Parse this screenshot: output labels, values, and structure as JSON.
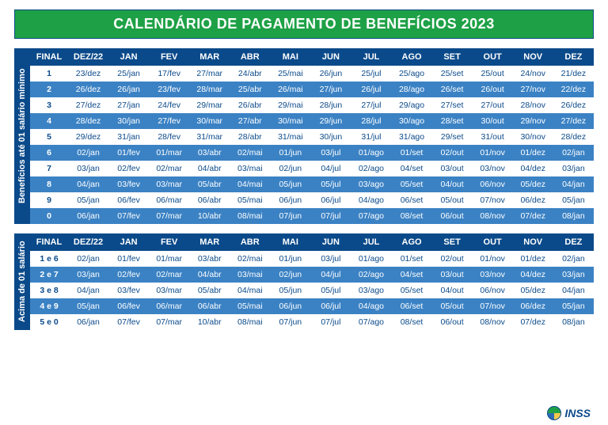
{
  "title": "CALENDÁRIO DE PAGAMENTO DE BENEFÍCIOS 2023",
  "footer_org": "INSS",
  "colors": {
    "banner_bg": "#1ea146",
    "header_bg": "#0b4a8a",
    "row_alt_bg": "#3b82c4",
    "text_dark": "#0b4a8a",
    "text_light": "#ffffff"
  },
  "columns": [
    "FINAL",
    "DEZ/22",
    "JAN",
    "FEV",
    "MAR",
    "ABR",
    "MAI",
    "JUN",
    "JUL",
    "AGO",
    "SET",
    "OUT",
    "NOV",
    "DEZ"
  ],
  "section1": {
    "sidebar": "Benefícios até 01 salário mínimo",
    "rows": [
      [
        "1",
        "23/dez",
        "25/jan",
        "17/fev",
        "27/mar",
        "24/abr",
        "25/mai",
        "26/jun",
        "25/jul",
        "25/ago",
        "25/set",
        "25/out",
        "24/nov",
        "21/dez"
      ],
      [
        "2",
        "26/dez",
        "26/jan",
        "23/fev",
        "28/mar",
        "25/abr",
        "26/mai",
        "27/jun",
        "26/jul",
        "28/ago",
        "26/set",
        "26/out",
        "27/nov",
        "22/dez"
      ],
      [
        "3",
        "27/dez",
        "27/jan",
        "24/fev",
        "29/mar",
        "26/abr",
        "29/mai",
        "28/jun",
        "27/jul",
        "29/ago",
        "27/set",
        "27/out",
        "28/nov",
        "26/dez"
      ],
      [
        "4",
        "28/dez",
        "30/jan",
        "27/fev",
        "30/mar",
        "27/abr",
        "30/mai",
        "29/jun",
        "28/jul",
        "30/ago",
        "28/set",
        "30/out",
        "29/nov",
        "27/dez"
      ],
      [
        "5",
        "29/dez",
        "31/jan",
        "28/fev",
        "31/mar",
        "28/abr",
        "31/mai",
        "30/jun",
        "31/jul",
        "31/ago",
        "29/set",
        "31/out",
        "30/nov",
        "28/dez"
      ],
      [
        "6",
        "02/jan",
        "01/fev",
        "01/mar",
        "03/abr",
        "02/mai",
        "01/jun",
        "03/jul",
        "01/ago",
        "01/set",
        "02/out",
        "01/nov",
        "01/dez",
        "02/jan"
      ],
      [
        "7",
        "03/jan",
        "02/fev",
        "02/mar",
        "04/abr",
        "03/mai",
        "02/jun",
        "04/jul",
        "02/ago",
        "04/set",
        "03/out",
        "03/nov",
        "04/dez",
        "03/jan"
      ],
      [
        "8",
        "04/jan",
        "03/fev",
        "03/mar",
        "05/abr",
        "04/mai",
        "05/jun",
        "05/jul",
        "03/ago",
        "05/set",
        "04/out",
        "06/nov",
        "05/dez",
        "04/jan"
      ],
      [
        "9",
        "05/jan",
        "06/fev",
        "06/mar",
        "06/abr",
        "05/mai",
        "06/jun",
        "06/jul",
        "04/ago",
        "06/set",
        "05/out",
        "07/nov",
        "06/dez",
        "05/jan"
      ],
      [
        "0",
        "06/jan",
        "07/fev",
        "07/mar",
        "10/abr",
        "08/mai",
        "07/jun",
        "07/jul",
        "07/ago",
        "08/set",
        "06/out",
        "08/nov",
        "07/dez",
        "08/jan"
      ]
    ]
  },
  "section2": {
    "sidebar": "Acima de 01 salário",
    "rows": [
      [
        "1 e 6",
        "02/jan",
        "01/fev",
        "01/mar",
        "03/abr",
        "02/mai",
        "01/jun",
        "03/jul",
        "01/ago",
        "01/set",
        "02/out",
        "01/nov",
        "01/dez",
        "02/jan"
      ],
      [
        "2 e 7",
        "03/jan",
        "02/fev",
        "02/mar",
        "04/abr",
        "03/mai",
        "02/jun",
        "04/jul",
        "02/ago",
        "04/set",
        "03/out",
        "03/nov",
        "04/dez",
        "03/jan"
      ],
      [
        "3 e 8",
        "04/jan",
        "03/fev",
        "03/mar",
        "05/abr",
        "04/mai",
        "05/jun",
        "05/jul",
        "03/ago",
        "05/set",
        "04/out",
        "06/nov",
        "05/dez",
        "04/jan"
      ],
      [
        "4 e 9",
        "05/jan",
        "06/fev",
        "06/mar",
        "06/abr",
        "05/mai",
        "06/jun",
        "06/jul",
        "04/ago",
        "06/set",
        "05/out",
        "07/nov",
        "06/dez",
        "05/jan"
      ],
      [
        "5 e 0",
        "06/jan",
        "07/fev",
        "07/mar",
        "10/abr",
        "08/mai",
        "07/jun",
        "07/jul",
        "07/ago",
        "08/set",
        "06/out",
        "08/nov",
        "07/dez",
        "08/jan"
      ]
    ]
  }
}
